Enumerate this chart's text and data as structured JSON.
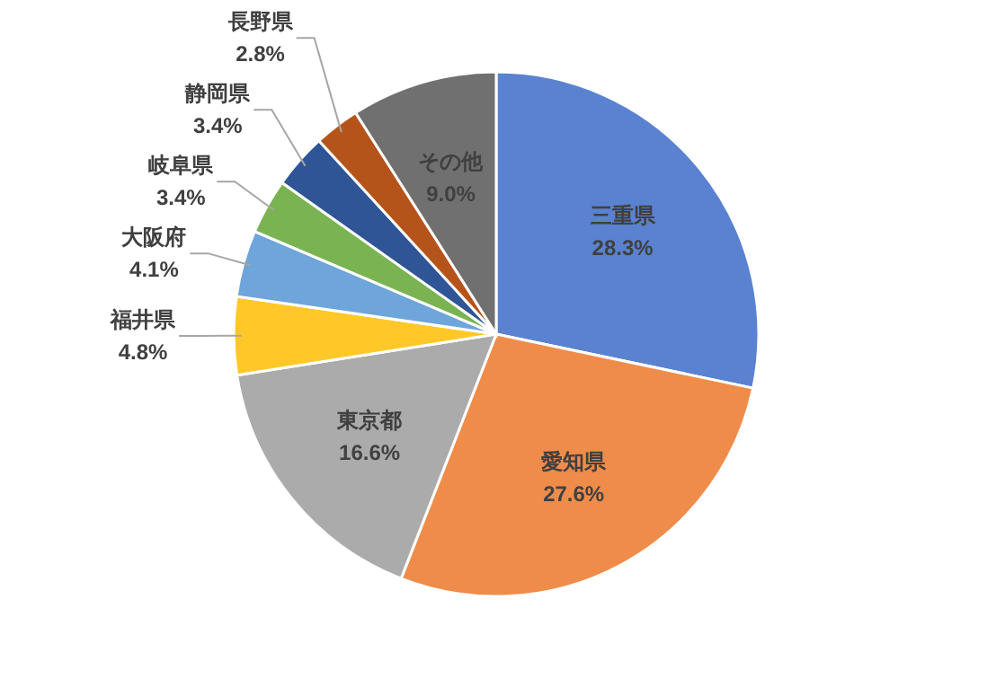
{
  "chart_data": {
    "type": "pie",
    "categories": [
      "三重県",
      "愛知県",
      "東京都",
      "福井県",
      "大阪府",
      "岐阜県",
      "静岡県",
      "長野県",
      "その他"
    ],
    "values": [
      28.3,
      27.6,
      16.6,
      4.8,
      4.1,
      3.4,
      3.4,
      2.8,
      9.0
    ],
    "value_labels": [
      "28.3%",
      "27.6%",
      "16.6%",
      "4.8%",
      "4.1%",
      "3.4%",
      "3.4%",
      "2.8%",
      "9.0%"
    ],
    "colors": [
      "#5a82d0",
      "#f08c4a",
      "#ababab",
      "#ffc828",
      "#6ea5da",
      "#7ab452",
      "#2f5597",
      "#b5541a",
      "#707070"
    ]
  }
}
